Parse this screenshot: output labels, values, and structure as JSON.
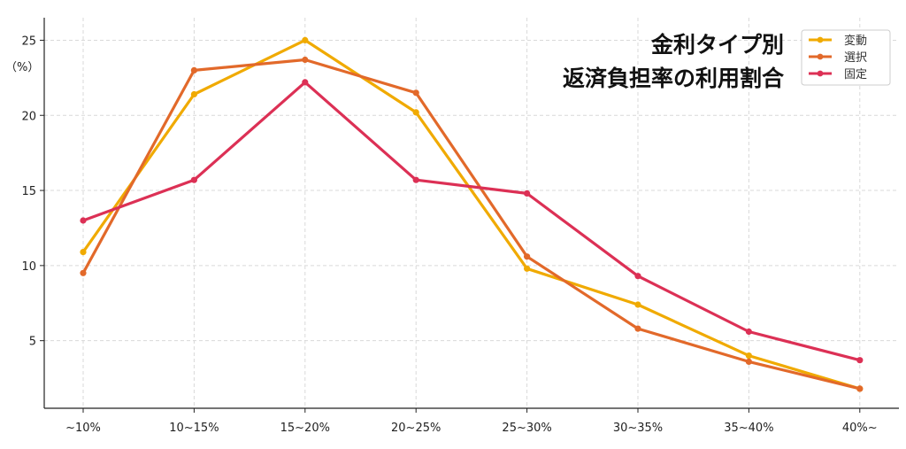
{
  "chart_data": {
    "type": "line",
    "title_lines": [
      "金利タイプ別",
      "返済負担率の利用割合"
    ],
    "ylabel": "（%）",
    "xlabel": "",
    "categories": [
      "~10%",
      "10~15%",
      "15~20%",
      "20~25%",
      "25~30%",
      "30~35%",
      "35~40%",
      "40%~"
    ],
    "ylim": [
      0.5,
      26.5
    ],
    "yticks": [
      5,
      10,
      15,
      20,
      25
    ],
    "grid": true,
    "legend_position": "top-right",
    "series": [
      {
        "name": "変動",
        "color": "#F0AA00",
        "values": [
          10.9,
          21.4,
          25.0,
          20.2,
          9.8,
          7.4,
          4.0,
          1.8
        ]
      },
      {
        "name": "選択",
        "color": "#E2692A",
        "values": [
          9.5,
          23.0,
          23.7,
          21.5,
          10.6,
          5.8,
          3.6,
          1.8
        ]
      },
      {
        "name": "固定",
        "color": "#DC3055",
        "values": [
          13.0,
          15.7,
          22.2,
          15.7,
          14.8,
          9.3,
          5.6,
          3.7
        ]
      }
    ]
  }
}
